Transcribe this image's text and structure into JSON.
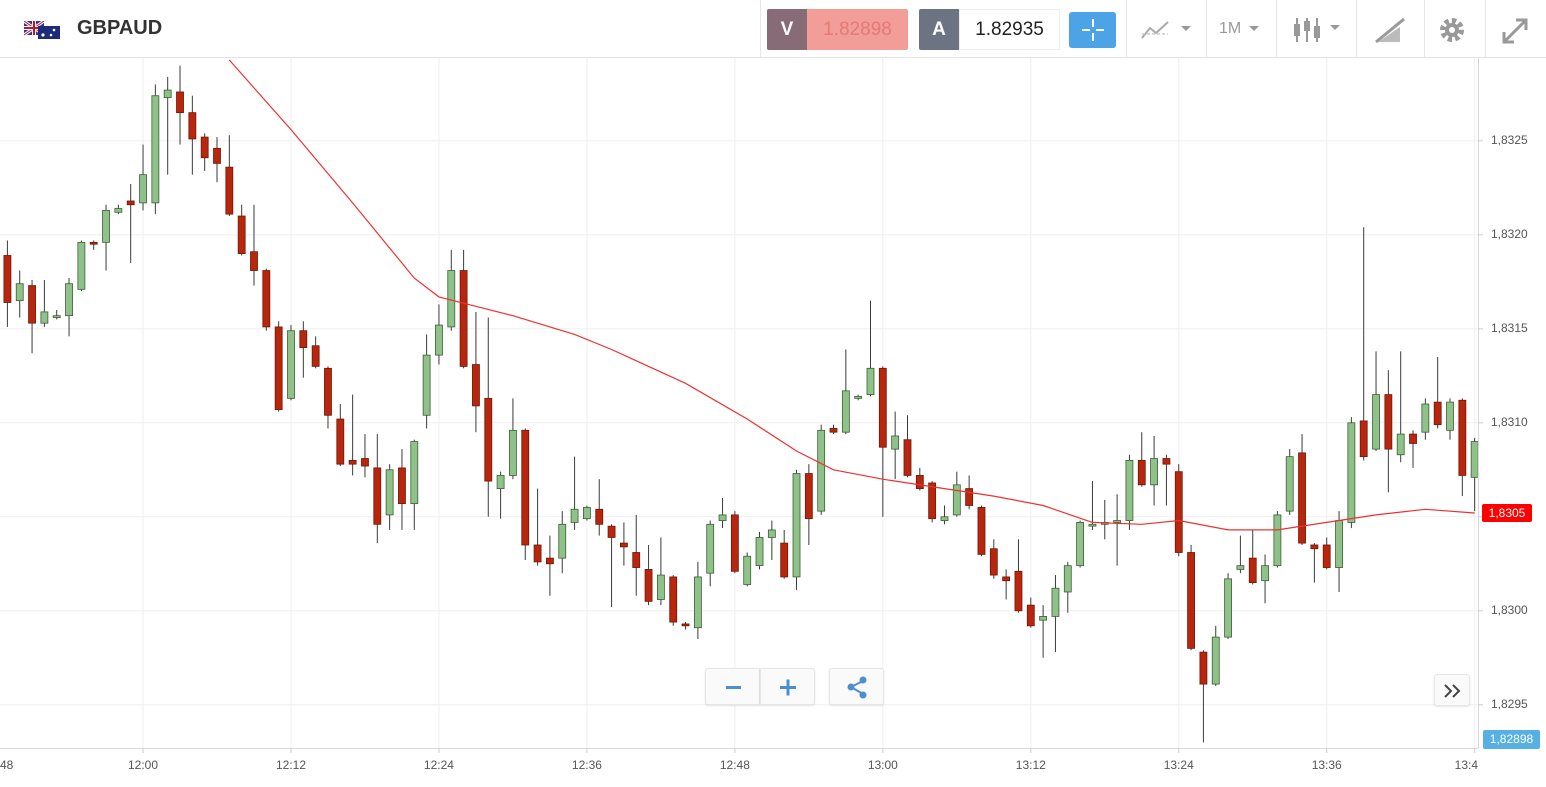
{
  "header": {
    "symbol": "GBPAUD",
    "sell": {
      "label": "V",
      "price": 1.82898
    },
    "buy": {
      "label": "A",
      "price": 1.82935
    },
    "timeframe": "1M"
  },
  "chart_data": {
    "type": "candlestick",
    "up_color": "#8fc288",
    "down_color": "#b8260d",
    "open": [
      1.83189,
      1.83165,
      1.83173,
      1.83153,
      1.83156,
      1.83157,
      1.83171,
      1.83196,
      1.83196,
      1.83212,
      1.83218,
      1.83217,
      1.83217,
      1.83273,
      1.83276,
      1.83265,
      1.83252,
      1.83246,
      1.83236,
      1.8321,
      1.83191,
      1.83181,
      1.83151,
      1.83113,
      1.83149,
      1.83141,
      1.83129,
      1.83102,
      1.8308,
      1.83081,
      1.83076,
      1.83051,
      1.83076,
      1.83057,
      1.83104,
      1.83136,
      1.83151,
      1.83181,
      1.83131,
      1.83113,
      1.83065,
      1.83072,
      1.83096,
      1.83035,
      1.83028,
      1.83028,
      1.83047,
      1.83049,
      1.83054,
      1.83045,
      1.83036,
      1.83031,
      1.83022,
      1.83006,
      1.83018,
      1.82993,
      1.82991,
      1.8302,
      1.83048,
      1.83051,
      1.83014,
      1.83024,
      1.83039,
      1.83036,
      1.83018,
      1.83073,
      1.83053,
      1.83097,
      1.83095,
      1.83113,
      1.83115,
      1.83129,
      1.83086,
      1.83091,
      1.83072,
      1.83068,
      1.83048,
      1.83051,
      1.83065,
      1.83055,
      1.83033,
      1.83018,
      1.83021,
      1.83003,
      1.82995,
      1.82997,
      1.8301,
      1.83024,
      1.83045,
      1.83046,
      1.83047,
      1.83048,
      1.8308,
      1.83067,
      1.83081,
      1.83074,
      1.83031,
      1.82978,
      1.82961,
      1.82986,
      1.83022,
      1.83028,
      1.83016,
      1.83024,
      1.83053,
      1.83084,
      1.83035,
      1.83035,
      1.83023,
      1.83047,
      1.83101,
      1.83086,
      1.83115,
      1.83083,
      1.83094,
      1.83095,
      1.83111,
      1.83096,
      1.83112,
      1.83071
    ],
    "high": [
      1.83197,
      1.83181,
      1.83176,
      1.83176,
      1.8316,
      1.83177,
      1.83197,
      1.83197,
      1.83216,
      1.83216,
      1.83227,
      1.83248,
      1.8328,
      1.83284,
      1.8329,
      1.83274,
      1.83254,
      1.83252,
      1.83253,
      1.83216,
      1.83216,
      1.83182,
      1.83154,
      1.83152,
      1.83154,
      1.83146,
      1.8313,
      1.8311,
      1.83115,
      1.83094,
      1.83094,
      1.83078,
      1.83086,
      1.83091,
      1.83147,
      1.83163,
      1.83192,
      1.83192,
      1.83159,
      1.83156,
      1.83074,
      1.83113,
      1.83097,
      1.83065,
      1.8304,
      1.83053,
      1.83082,
      1.83056,
      1.8307,
      1.83046,
      1.83047,
      1.83051,
      1.83035,
      1.83039,
      1.83019,
      1.82994,
      1.83026,
      1.83048,
      1.8306,
      1.83053,
      1.83031,
      1.83042,
      1.83048,
      1.83043,
      1.83075,
      1.83078,
      1.83099,
      1.83099,
      1.83139,
      1.83115,
      1.83165,
      1.8313,
      1.83106,
      1.83104,
      1.83076,
      1.83069,
      1.83056,
      1.83074,
      1.83072,
      1.83056,
      1.83038,
      1.83022,
      1.83038,
      1.83007,
      1.83003,
      1.83019,
      1.83026,
      1.83048,
      1.83069,
      1.83059,
      1.83062,
      1.83083,
      1.83095,
      1.83093,
      1.83083,
      1.83078,
      1.83035,
      1.82979,
      1.82992,
      1.8302,
      1.8304,
      1.83043,
      1.8303,
      1.83053,
      1.83086,
      1.83094,
      1.83036,
      1.83039,
      1.83053,
      1.83103,
      1.83204,
      1.83138,
      1.83128,
      1.83138,
      1.83096,
      1.83113,
      1.83135,
      1.83113,
      1.83113,
      1.83092
    ],
    "low": [
      1.83151,
      1.83156,
      1.83137,
      1.83151,
      1.83155,
      1.83146,
      1.8317,
      1.83192,
      1.83181,
      1.83211,
      1.83185,
      1.83213,
      1.83211,
      1.83232,
      1.83248,
      1.83232,
      1.83234,
      1.83228,
      1.8321,
      1.83189,
      1.83173,
      1.83149,
      1.83106,
      1.83112,
      1.83124,
      1.83129,
      1.83097,
      1.83077,
      1.83072,
      1.83071,
      1.83036,
      1.83043,
      1.83043,
      1.83043,
      1.83097,
      1.83131,
      1.83149,
      1.83129,
      1.83095,
      1.8305,
      1.83049,
      1.8307,
      1.83027,
      1.83024,
      1.83008,
      1.8302,
      1.83043,
      1.83048,
      1.8304,
      1.83002,
      1.83024,
      1.83008,
      1.83003,
      1.83003,
      1.82992,
      1.8299,
      1.82985,
      1.83013,
      1.83044,
      1.8302,
      1.83013,
      1.83022,
      1.83027,
      1.83017,
      1.83011,
      1.83035,
      1.83051,
      1.83094,
      1.83094,
      1.83112,
      1.83114,
      1.8305,
      1.8307,
      1.83071,
      1.83064,
      1.83047,
      1.83046,
      1.8305,
      1.83054,
      1.83029,
      1.83017,
      1.83006,
      1.82999,
      1.82991,
      1.82975,
      1.82978,
      1.82999,
      1.83023,
      1.83043,
      1.83038,
      1.83024,
      1.83043,
      1.83066,
      1.83056,
      1.83056,
      1.83029,
      1.82979,
      1.8293,
      1.8296,
      1.82985,
      1.8302,
      1.83014,
      1.83004,
      1.83023,
      1.83051,
      1.83035,
      1.83015,
      1.83022,
      1.8301,
      1.83044,
      1.8308,
      1.83085,
      1.83063,
      1.83079,
      1.83076,
      1.83091,
      1.83097,
      1.83091,
      1.83061,
      1.83053
    ],
    "close": [
      1.83164,
      1.83174,
      1.83153,
      1.83159,
      1.83157,
      1.83174,
      1.83196,
      1.83195,
      1.83213,
      1.83214,
      1.83216,
      1.83232,
      1.83274,
      1.83277,
      1.83265,
      1.83251,
      1.83241,
      1.83238,
      1.83211,
      1.8319,
      1.83181,
      1.83151,
      1.83107,
      1.83149,
      1.8314,
      1.8313,
      1.83104,
      1.83078,
      1.83078,
      1.83077,
      1.83046,
      1.83075,
      1.83057,
      1.8309,
      1.83136,
      1.83152,
      1.83181,
      1.8313,
      1.83109,
      1.83069,
      1.83072,
      1.83096,
      1.83035,
      1.83026,
      1.83025,
      1.83046,
      1.83054,
      1.83055,
      1.83046,
      1.83039,
      1.83034,
      1.83023,
      1.83005,
      1.83019,
      1.82994,
      1.82992,
      1.83018,
      1.83046,
      1.83051,
      1.83021,
      1.83029,
      1.83039,
      1.83043,
      1.83018,
      1.83073,
      1.83049,
      1.83096,
      1.83095,
      1.83117,
      1.83114,
      1.83129,
      1.83087,
      1.83093,
      1.83072,
      1.83065,
      1.83049,
      1.8305,
      1.83067,
      1.83056,
      1.8303,
      1.83019,
      1.83016,
      1.83,
      1.82992,
      1.82997,
      1.83012,
      1.83024,
      1.83047,
      1.83046,
      1.83047,
      1.83048,
      1.8308,
      1.83067,
      1.83081,
      1.83078,
      1.83031,
      1.8298,
      1.82961,
      1.82986,
      1.83017,
      1.83024,
      1.83015,
      1.83024,
      1.83051,
      1.83082,
      1.83036,
      1.83033,
      1.83023,
      1.83048,
      1.831,
      1.83082,
      1.83115,
      1.83086,
      1.83094,
      1.83089,
      1.8311,
      1.83099,
      1.83111,
      1.83072,
      1.8309
    ],
    "moving_average": {
      "color": "#f03030",
      "last_value_label": "1,8305",
      "x": [
        18,
        23,
        28,
        33,
        35,
        38,
        41,
        46,
        49,
        55,
        60,
        64,
        67,
        71,
        76,
        80,
        84,
        88,
        92,
        95,
        99,
        103,
        107,
        111,
        115,
        119
      ],
      "values": [
        1.83293,
        1.83256,
        1.83217,
        1.83177,
        1.83167,
        1.83162,
        1.83157,
        1.83147,
        1.83139,
        1.83121,
        1.83102,
        1.83085,
        1.83075,
        1.8307,
        1.83065,
        1.83061,
        1.83056,
        1.83047,
        1.83046,
        1.83048,
        1.83043,
        1.83043,
        1.83047,
        1.83051,
        1.83054,
        1.83052
      ]
    },
    "price_label": "1,82898",
    "xlim": [
      -0.6,
      119.27
    ],
    "xticks": [
      {
        "value": -1,
        "label": "48"
      },
      {
        "value": 11,
        "label": "12:00"
      },
      {
        "value": 23,
        "label": "12:12"
      },
      {
        "value": 35,
        "label": "12:24"
      },
      {
        "value": 47,
        "label": "12:36"
      },
      {
        "value": 59,
        "label": "12:48"
      },
      {
        "value": 71,
        "label": "13:00"
      },
      {
        "value": 83,
        "label": "13:12"
      },
      {
        "value": 95,
        "label": "13:24"
      },
      {
        "value": 107,
        "label": "13:36"
      },
      {
        "value": 119,
        "label": "13:4"
      }
    ],
    "ylim": [
      1.82927,
      1.83293
    ],
    "yticks": [
      {
        "value": 1.8295,
        "label": "1,8295"
      },
      {
        "value": 1.83,
        "label": "1,8300"
      },
      {
        "value": 1.8305,
        "label": "1,8305"
      },
      {
        "value": 1.831,
        "label": "1,8310"
      },
      {
        "value": 1.8315,
        "label": "1,8315"
      },
      {
        "value": 1.832,
        "label": "1,8320"
      },
      {
        "value": 1.8325,
        "label": "1,8325"
      }
    ],
    "grid": true
  }
}
